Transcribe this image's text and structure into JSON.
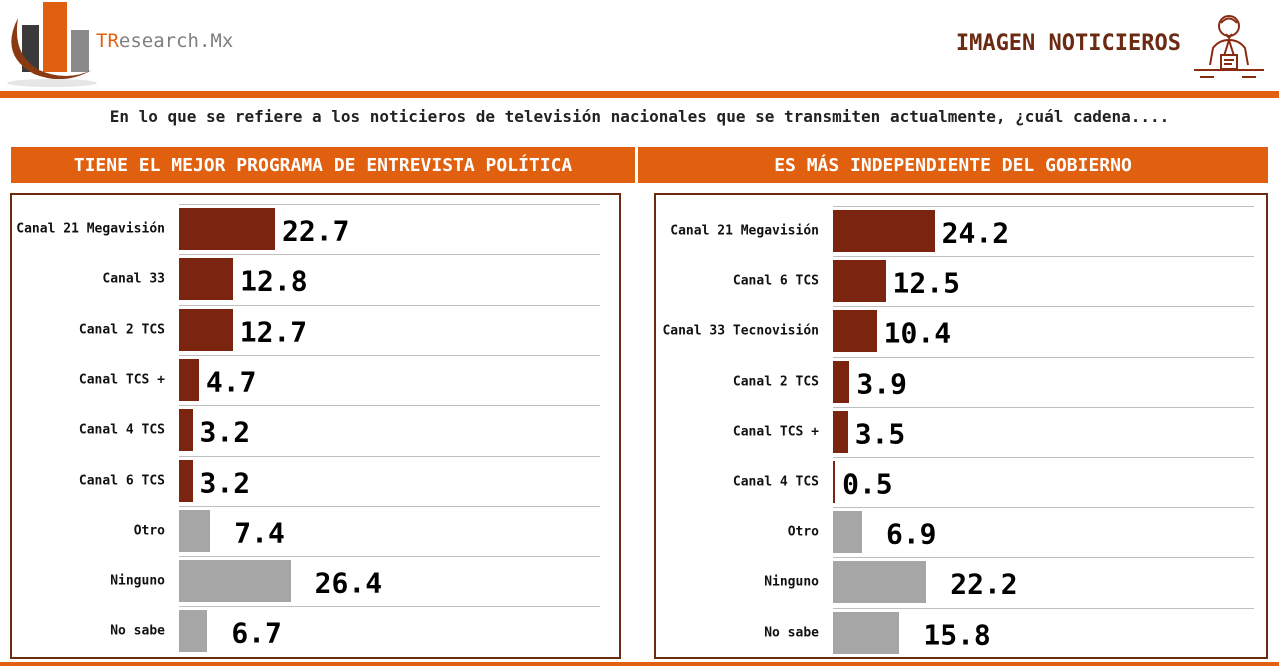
{
  "header": {
    "brand_prefix": "TR",
    "brand_suffix": "esearch.Mx",
    "title": "IMAGEN NOTICIEROS",
    "subtitle": "En lo que se refiere a los noticieros de televisión nacionales que se transmiten actualmente, ¿cuál cadena....",
    "accent_color": "#E0600F"
  },
  "chart_data": [
    {
      "type": "bar",
      "orientation": "horizontal",
      "title": "TIENE EL MEJOR PROGRAMA DE ENTREVISTA POLÍTICA",
      "categories": [
        "Canal 21 Megavisión",
        "Canal 33",
        "Canal 2 TCS",
        "Canal TCS +",
        "Canal 4 TCS",
        "Canal 6 TCS",
        "Otro",
        "Ninguno",
        "No sabe"
      ],
      "values": [
        22.7,
        12.8,
        12.7,
        4.7,
        3.2,
        3.2,
        7.4,
        26.4,
        6.7
      ],
      "labels": [
        "22.7",
        "12.8",
        "12.7",
        "4.7",
        "3.2",
        "3.2",
        "7.4",
        "26.4",
        "6.7"
      ],
      "colors": [
        "#7B2410",
        "#7B2410",
        "#7B2410",
        "#7B2410",
        "#7B2410",
        "#7B2410",
        "#A6A6A6",
        "#A6A6A6",
        "#A6A6A6"
      ],
      "grid": true
    },
    {
      "type": "bar",
      "orientation": "horizontal",
      "title": "ES MÁS INDEPENDIENTE DEL GOBIERNO",
      "categories": [
        "Canal 21 Megavisión",
        "Canal 6 TCS",
        "Canal 33 Tecnovisión",
        "Canal 2 TCS",
        "Canal TCS +",
        "Canal 4 TCS",
        "Otro",
        "Ninguno",
        "No sabe"
      ],
      "values": [
        24.2,
        12.5,
        10.4,
        3.9,
        3.5,
        0.5,
        6.9,
        22.2,
        15.8
      ],
      "labels": [
        "24.2",
        "12.5",
        "10.4",
        "3.9",
        "3.5",
        "0.5",
        "6.9",
        "22.2",
        "15.8"
      ],
      "colors": [
        "#7B2410",
        "#7B2410",
        "#7B2410",
        "#7B2410",
        "#7B2410",
        "#7B2410",
        "#A6A6A6",
        "#A6A6A6",
        "#A6A6A6"
      ],
      "grid": true
    }
  ]
}
